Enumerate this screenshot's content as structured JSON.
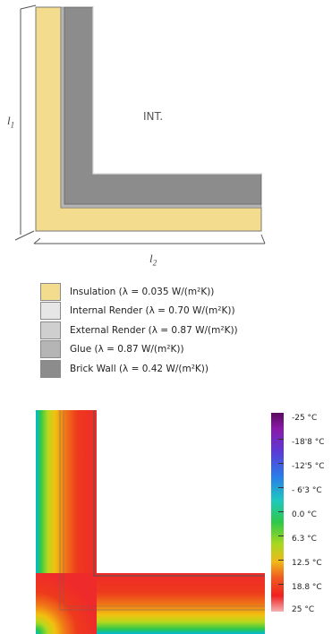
{
  "diagram": {
    "interior_label": "INT.",
    "l1_label": "l",
    "l1_sub": "1",
    "l2_label": "l",
    "l2_sub": "2"
  },
  "legend": {
    "items": [
      {
        "text": "Insulation (λ = 0.035 W/(m²K))",
        "color": "#f4dc8f"
      },
      {
        "text": "Internal Render (λ = 0.70 W/(m²K))",
        "color": "#e6e6e6"
      },
      {
        "text": "External Render (λ = 0.87 W/(m²K))",
        "color": "#cfcfcf"
      },
      {
        "text": "Glue (λ = 0.87 W/(m²K))",
        "color": "#b5b5b5"
      },
      {
        "text": "Brick Wall (λ = 0.42 W/(m²K))",
        "color": "#8c8c8c"
      }
    ]
  },
  "temperature_scale": {
    "labels": [
      "-25 °C",
      "-18'8 °C",
      "-12'5 °C",
      "- 6'3 °C",
      "0.0 °C",
      "6.3 °C",
      "12.5 °C",
      "18.8 °C",
      "25 °C"
    ],
    "colors": [
      "#5a0a5e",
      "#8a1aa8",
      "#5a3cd8",
      "#2a7ce8",
      "#1fc8c0",
      "#2ec84a",
      "#a8d820",
      "#f0b818",
      "#f05a20",
      "#f02020",
      "#f5b0b0"
    ]
  }
}
